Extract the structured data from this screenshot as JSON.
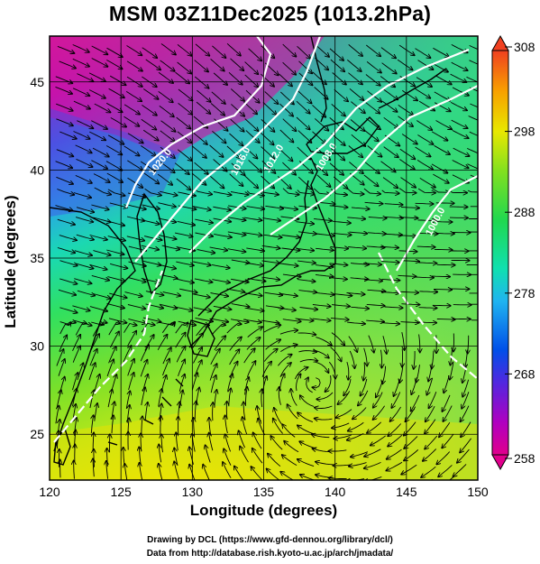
{
  "title": "MSM 03Z11Dec2025 (1013.2hPa)",
  "xaxis": {
    "label": "Longitude (degrees)",
    "range": [
      120,
      150
    ],
    "ticks": [
      "120",
      "125",
      "130",
      "135",
      "140",
      "145",
      "150"
    ]
  },
  "yaxis": {
    "label": "Latitude  (degrees)",
    "range": [
      22.4,
      47.6
    ],
    "ticks": [
      "25",
      "30",
      "35",
      "40",
      "45"
    ]
  },
  "colorbar": {
    "range": [
      258,
      308
    ],
    "labels": [
      "258",
      "268",
      "278",
      "288",
      "298",
      "308"
    ]
  },
  "contours": [
    "1020.0",
    "1016.0",
    "1012.0",
    "1008.0",
    "1000.0"
  ],
  "credits": {
    "line1": "Drawing by DCL (https://www.gfd-dennou.org/library/dcl/)",
    "line2": "Data from http://database.rish.kyoto-u.ac.jp/arch/jmadata/"
  }
}
